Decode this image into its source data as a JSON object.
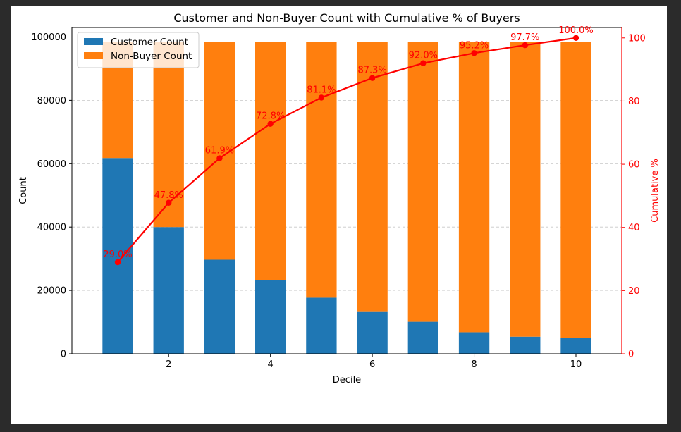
{
  "chart_data": {
    "type": "bar",
    "title": "Customer and Non-Buyer Count with Cumulative % of Buyers",
    "xlabel": "Decile",
    "ylabel": "Count",
    "y2label": "Cumulative %",
    "x": [
      1,
      2,
      3,
      4,
      5,
      6,
      7,
      8,
      9,
      10
    ],
    "xticks": [
      2,
      4,
      6,
      8,
      10
    ],
    "xlim": [
      0.1,
      10.9
    ],
    "ylim": [
      0,
      103000
    ],
    "yticks": [
      0,
      20000,
      40000,
      60000,
      80000,
      100000
    ],
    "y2lim": [
      0,
      103.3
    ],
    "y2ticks": [
      0,
      20,
      40,
      60,
      80,
      100
    ],
    "stacked": true,
    "grid": "y-dashed",
    "legend_position": "top-left",
    "series": [
      {
        "name": "Customer Count",
        "color": "#1f77b4",
        "values": [
          61800,
          40000,
          29700,
          23200,
          17700,
          13200,
          10100,
          6800,
          5400,
          4900
        ]
      },
      {
        "name": "Non-Buyer Count",
        "color": "#ff7f0e",
        "values": [
          36700,
          58500,
          68800,
          75300,
          80800,
          85300,
          88400,
          91700,
          93100,
          93600
        ]
      }
    ],
    "line_series": {
      "axis": "right",
      "color": "#ff0000",
      "values": [
        29.0,
        47.8,
        61.9,
        72.8,
        81.1,
        87.3,
        92.0,
        95.2,
        97.7,
        100.0
      ],
      "labels": [
        "29.0%",
        "47.8%",
        "61.9%",
        "72.8%",
        "81.1%",
        "87.3%",
        "92.0%",
        "95.2%",
        "97.7%",
        "100.0%"
      ]
    }
  }
}
